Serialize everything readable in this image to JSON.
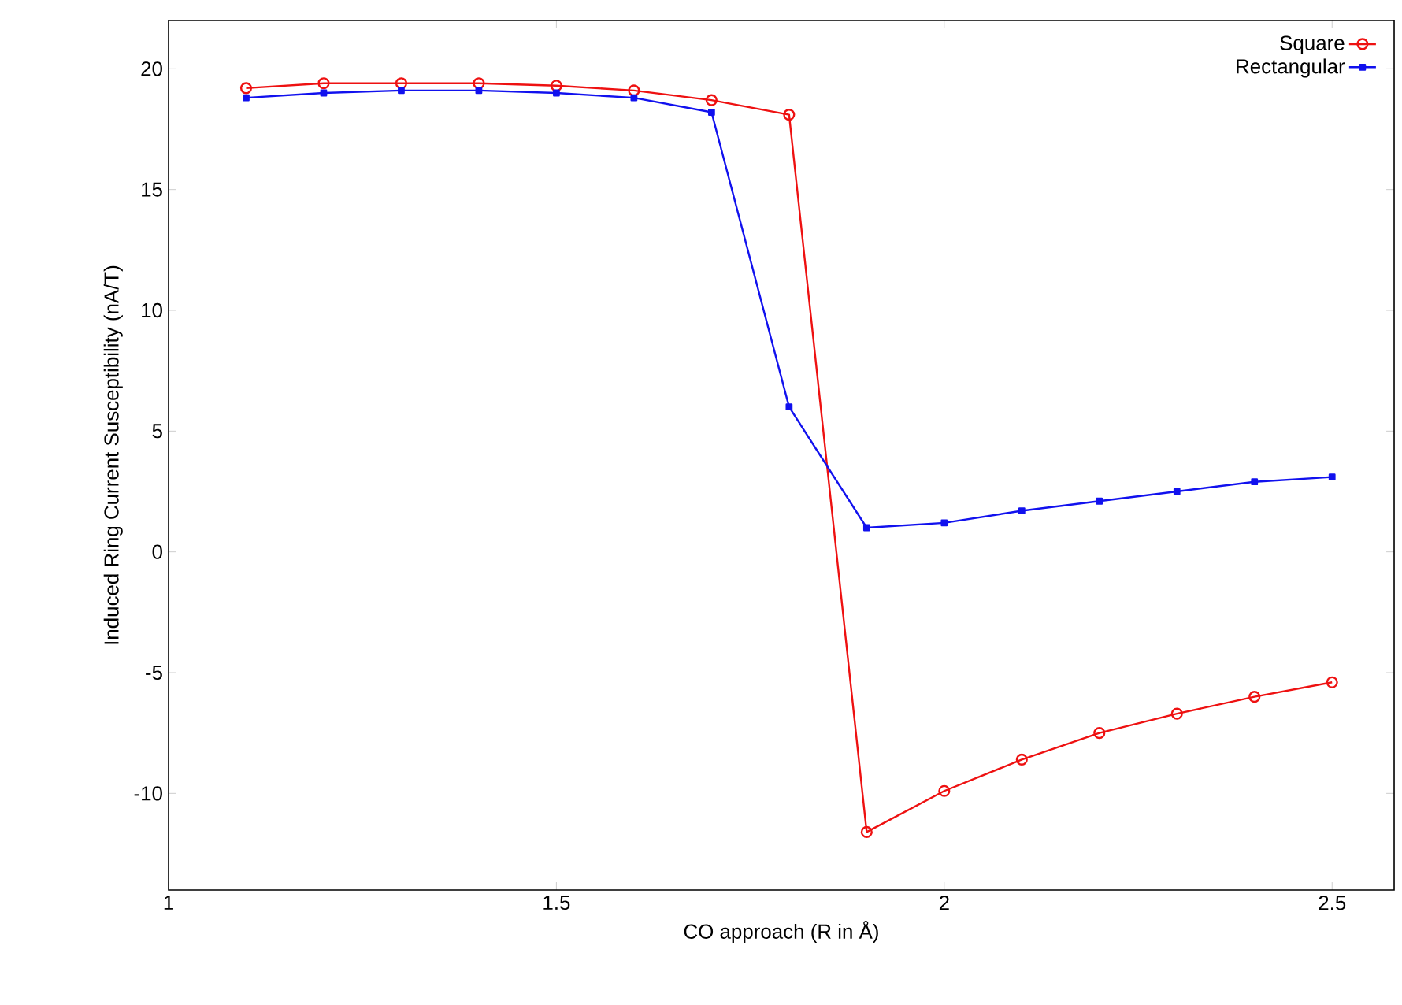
{
  "chart_data": {
    "type": "line",
    "xlabel": "CO approach (R in Å)",
    "ylabel": "Induced Ring Current Susceptibility (nA/T)",
    "x": [
      1.1,
      1.2,
      1.3,
      1.4,
      1.5,
      1.6,
      1.7,
      1.8,
      1.9,
      2.0,
      2.1,
      2.2,
      2.3,
      2.4,
      2.5
    ],
    "series": [
      {
        "name": "Square",
        "color": "#ee1111",
        "marker": "circle",
        "values": [
          19.2,
          19.4,
          19.4,
          19.4,
          19.3,
          19.1,
          18.7,
          18.1,
          -11.6,
          -9.9,
          -8.6,
          -7.5,
          -6.7,
          -6.0,
          -5.4
        ]
      },
      {
        "name": "Rectangular",
        "color": "#1111ee",
        "marker": "square",
        "values": [
          18.8,
          19.0,
          19.1,
          19.1,
          19.0,
          18.8,
          18.2,
          6.0,
          1.0,
          1.2,
          1.7,
          2.1,
          2.5,
          2.9,
          3.1
        ]
      }
    ],
    "xlim": [
      1,
      2.58
    ],
    "ylim": [
      -14,
      22
    ],
    "xticks": [
      1,
      1.5,
      2,
      2.5
    ],
    "yticks": [
      -10,
      -5,
      0,
      5,
      10,
      15,
      20
    ],
    "grid": false,
    "legend": "top right",
    "line_style": "solid"
  }
}
